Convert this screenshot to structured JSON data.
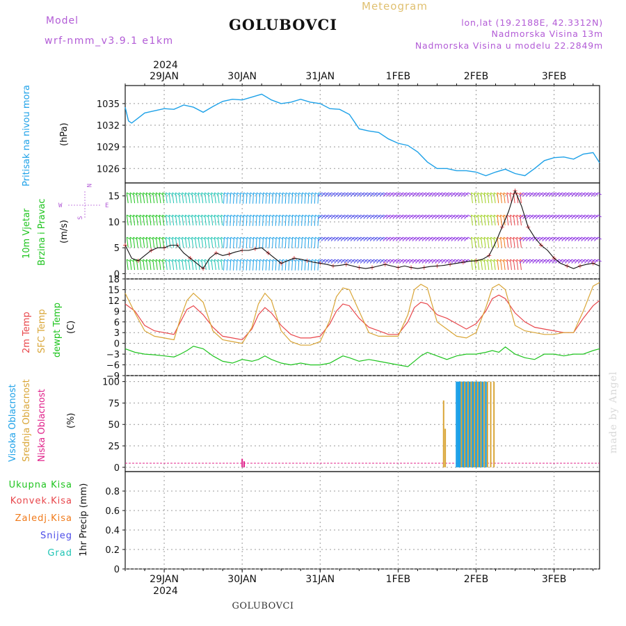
{
  "header": {
    "meteogram_label": "Meteogram",
    "model_label": "Model",
    "model_name": "wrf-nmm_v3.9.1 e1km",
    "station_title": "GOLUBOVCI",
    "lonlat": "lon,lat (19.2188E, 42.3312N)",
    "elevation": "Nadmorska Visina 13m",
    "model_elevation": "Nadmorska Visina u modelu 22.2849m"
  },
  "footer": {
    "station": "GOLUBOVCI",
    "watermark": "made by Angel"
  },
  "colors": {
    "pressure": "#1da1e8",
    "temp2m": "#e8454a",
    "sfc": "#d9a536",
    "dew": "#1ec41e",
    "high_cloud": "#1da1e8",
    "mid_cloud": "#d9a536",
    "low_cloud": "#e0218a",
    "precip_total": "#1ec41e",
    "precip_conv": "#e8454a",
    "precip_frozen": "#f07a1a",
    "snow": "#4b4be8",
    "graupel": "#1ec4b4",
    "model_text": "#b25bd6",
    "meteogram_text": "#e0c070",
    "lonlat_text": "#b25bd6",
    "elev_text": "#b25bd6",
    "wind_speed_label": "#1ec41e"
  },
  "time_axis": {
    "year_label": "2024",
    "days": [
      "29JAN",
      "30JAN",
      "31JAN",
      "1FEB",
      "2FEB",
      "3FEB"
    ],
    "day_positions_hours": [
      12,
      36,
      60,
      84,
      108,
      132
    ],
    "range_hours": [
      0,
      146
    ]
  },
  "panels": {
    "pressure": {
      "labels": [
        "Pritisak na nivou mora",
        "(hPa)"
      ]
    },
    "wind": {
      "labels": [
        "10m Vjetar",
        "Brzina i Pravac",
        "(m/s)"
      ],
      "compass": [
        "N",
        "E",
        "S",
        "W"
      ]
    },
    "temp": {
      "labels": [
        "2m Temp",
        "SFC Temp",
        "dewpt Temp",
        "(C)"
      ]
    },
    "cloud": {
      "labels": [
        "Visoka Oblacnost",
        "Srednja Oblacnost",
        "Niska Oblacnost",
        "(%)"
      ]
    },
    "precip": {
      "labels": [
        "Ukupna Kisa",
        "Konvek.Kisa",
        "Zaledj.Kisa",
        "Snijeg",
        "Grad",
        "1hr Precip (mm)"
      ]
    }
  },
  "chart_data": [
    {
      "type": "line",
      "name": "pressure",
      "ylim": [
        1024,
        1037.5
      ],
      "yticks": [
        1026,
        1029,
        1032,
        1035
      ],
      "x": [
        0,
        1,
        2,
        4,
        6,
        9,
        12,
        15,
        18,
        21,
        24,
        27,
        30,
        33,
        36,
        39,
        42,
        45,
        48,
        51,
        54,
        57,
        60,
        63,
        66,
        69,
        72,
        75,
        78,
        81,
        84,
        87,
        90,
        93,
        96,
        99,
        102,
        105,
        108,
        111,
        114,
        117,
        120,
        123,
        126,
        129,
        132,
        135,
        138,
        141,
        144,
        146
      ],
      "series": [
        {
          "values": [
            1034.5,
            1032.6,
            1032.3,
            1033.0,
            1033.7,
            1034.0,
            1034.3,
            1034.2,
            1034.8,
            1034.5,
            1033.8,
            1034.6,
            1035.3,
            1035.6,
            1035.5,
            1035.9,
            1036.3,
            1035.5,
            1035.0,
            1035.2,
            1035.6,
            1035.2,
            1035.0,
            1034.3,
            1034.2,
            1033.5,
            1031.5,
            1031.2,
            1031.0,
            1030.1,
            1029.5,
            1029.2,
            1028.3,
            1026.9,
            1026.0,
            1026.0,
            1025.7,
            1025.7,
            1025.5,
            1025.0,
            1025.5,
            1025.9,
            1025.3,
            1025.0,
            1026.0,
            1027.1,
            1027.5,
            1027.6,
            1027.3,
            1028.0,
            1028.2,
            1026.8
          ]
        }
      ]
    },
    {
      "type": "line",
      "name": "wind_speed",
      "ylim": [
        -1,
        17.5
      ],
      "yticks": [
        0,
        5,
        10,
        15
      ],
      "x": [
        0,
        2,
        4,
        6,
        8,
        10,
        12,
        14,
        16,
        18,
        20,
        22,
        24,
        26,
        28,
        30,
        32,
        34,
        36,
        38,
        40,
        42,
        44,
        46,
        48,
        50,
        52,
        54,
        56,
        58,
        60,
        62,
        64,
        66,
        68,
        70,
        72,
        74,
        76,
        78,
        80,
        82,
        84,
        86,
        88,
        90,
        92,
        94,
        96,
        98,
        100,
        102,
        104,
        106,
        108,
        110,
        112,
        114,
        116,
        118,
        120,
        122,
        124,
        126,
        128,
        130,
        132,
        134,
        136,
        138,
        140,
        142,
        144,
        146
      ],
      "series": [
        {
          "values": [
            5.5,
            3.0,
            2.5,
            3.5,
            4.5,
            5.0,
            5.0,
            5.5,
            5.5,
            4.0,
            3.0,
            2.0,
            1.0,
            3.0,
            4.0,
            3.5,
            3.8,
            4.2,
            4.5,
            4.5,
            4.8,
            5.0,
            4.0,
            3.0,
            2.0,
            2.5,
            3.0,
            2.8,
            2.5,
            2.2,
            2.0,
            1.8,
            1.5,
            1.6,
            1.8,
            1.5,
            1.2,
            1.0,
            1.2,
            1.5,
            1.8,
            1.5,
            1.2,
            1.5,
            1.2,
            1.0,
            1.2,
            1.4,
            1.5,
            1.6,
            1.8,
            2.0,
            2.2,
            2.4,
            2.5,
            2.8,
            3.5,
            6.0,
            9.0,
            12.0,
            16.0,
            13.0,
            9.0,
            7.0,
            5.5,
            4.5,
            3.0,
            2.0,
            1.5,
            1.0,
            1.5,
            1.8,
            2.0,
            1.5
          ]
        }
      ]
    },
    {
      "type": "line",
      "name": "temperature",
      "ylim": [
        -9,
        18
      ],
      "yticks": [
        -9,
        -6,
        -3,
        0,
        3,
        6,
        9,
        12,
        15,
        18
      ],
      "x": [
        0,
        3,
        6,
        9,
        12,
        15,
        17,
        19,
        21,
        24,
        27,
        30,
        33,
        36,
        39,
        41,
        43,
        45,
        48,
        51,
        54,
        57,
        60,
        63,
        65,
        67,
        69,
        72,
        75,
        78,
        81,
        84,
        87,
        89,
        91,
        93,
        96,
        99,
        102,
        105,
        108,
        111,
        113,
        115,
        117,
        120,
        123,
        126,
        129,
        132,
        135,
        138,
        141,
        144,
        146
      ],
      "series": [
        {
          "name": "2m Temp",
          "values": [
            11.0,
            9.0,
            5.0,
            3.5,
            3.0,
            2.5,
            6.0,
            9.5,
            10.5,
            8.0,
            4.5,
            2.0,
            1.5,
            1.0,
            4.0,
            8.0,
            10.0,
            8.5,
            5.0,
            2.5,
            1.5,
            1.5,
            2.0,
            5.5,
            9.0,
            11.0,
            10.5,
            7.0,
            4.5,
            3.5,
            2.5,
            2.5,
            6.0,
            10.0,
            11.5,
            11.0,
            8.0,
            7.0,
            5.5,
            4.0,
            5.5,
            9.0,
            12.5,
            13.5,
            12.5,
            8.5,
            6.0,
            4.5,
            4.0,
            3.5,
            3.0,
            3.0,
            7.0,
            10.5,
            12.0
          ]
        },
        {
          "name": "SFC Temp",
          "values": [
            14.0,
            8.5,
            3.5,
            2.0,
            1.5,
            1.0,
            7.0,
            12.0,
            14.0,
            11.5,
            3.5,
            1.0,
            0.5,
            0.0,
            4.5,
            11.0,
            14.0,
            12.0,
            3.5,
            0.5,
            -0.5,
            -0.5,
            0.5,
            6.5,
            13.0,
            15.5,
            15.0,
            9.0,
            3.0,
            2.0,
            2.0,
            2.0,
            8.0,
            15.0,
            16.5,
            15.5,
            6.0,
            4.0,
            2.0,
            1.5,
            3.0,
            10.0,
            15.5,
            16.5,
            15.0,
            5.0,
            3.5,
            3.0,
            2.5,
            2.5,
            3.0,
            3.0,
            9.0,
            16.0,
            17.0
          ]
        },
        {
          "name": "dewpt Temp",
          "values": [
            -1.5,
            -2.5,
            -3.0,
            -3.2,
            -3.5,
            -3.8,
            -3.0,
            -2.0,
            -0.8,
            -1.5,
            -3.5,
            -5.0,
            -5.5,
            -4.5,
            -5.0,
            -4.5,
            -3.5,
            -4.5,
            -5.5,
            -6.0,
            -5.5,
            -6.0,
            -6.0,
            -5.5,
            -4.5,
            -3.5,
            -4.0,
            -5.0,
            -4.5,
            -5.0,
            -5.5,
            -6.0,
            -6.5,
            -5.0,
            -3.5,
            -2.5,
            -3.5,
            -4.5,
            -3.5,
            -3.0,
            -3.0,
            -2.5,
            -2.0,
            -2.5,
            -1.0,
            -3.0,
            -4.0,
            -4.5,
            -3.0,
            -3.0,
            -3.5,
            -3.0,
            -3.0,
            -2.0,
            -1.5
          ]
        }
      ]
    },
    {
      "type": "bar",
      "name": "cloud_cover",
      "ylim": [
        -5,
        107
      ],
      "yticks": [
        0,
        25,
        50,
        75,
        100
      ],
      "series": [
        {
          "name": "Visoka Oblacnost",
          "x": [
            102,
            102.5,
            103,
            103.5,
            104,
            104.5,
            105,
            105.5,
            106,
            106.5,
            107,
            107.5,
            108,
            108.5,
            109,
            109.5,
            110,
            111
          ],
          "values": [
            100,
            100,
            100,
            100,
            100,
            100,
            100,
            100,
            100,
            100,
            100,
            100,
            100,
            100,
            100,
            100,
            100,
            100
          ]
        },
        {
          "name": "Srednja Oblacnost",
          "x": [
            98,
            98.5,
            103.5,
            104.5,
            105.5,
            106.5,
            107.5,
            108.5,
            109.5,
            110.5,
            111.5,
            112.5,
            113.5
          ],
          "values": [
            78,
            45,
            100,
            100,
            100,
            100,
            100,
            100,
            100,
            100,
            100,
            100,
            100
          ]
        },
        {
          "name": "Niska Oblacnost",
          "x": [
            36,
            36.6
          ],
          "values": [
            10,
            7
          ]
        }
      ]
    },
    {
      "type": "bar",
      "name": "precip_1hr",
      "ylim": [
        0,
        1.0
      ],
      "yticks": [
        0,
        0.2,
        0.4,
        0.6,
        0.8
      ],
      "series": [
        {
          "name": "Ukupna Kisa",
          "x": [],
          "values": []
        }
      ]
    }
  ]
}
